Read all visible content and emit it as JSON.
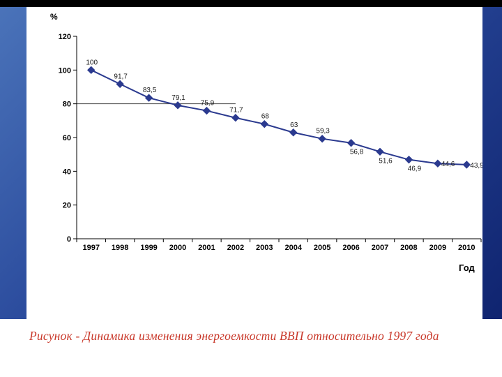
{
  "chart_data": {
    "type": "line",
    "title": "",
    "ylabel": "%",
    "xlabel": "Год",
    "categories": [
      "1997",
      "1998",
      "1999",
      "2000",
      "2001",
      "2002",
      "2003",
      "2004",
      "2005",
      "2006",
      "2007",
      "2008",
      "2009",
      "2010"
    ],
    "values": [
      100,
      91.7,
      83.5,
      79.1,
      75.9,
      71.7,
      68,
      63,
      59.3,
      56.8,
      51.6,
      46.9,
      44.6,
      43.9
    ],
    "point_labels": [
      "100",
      "91,7",
      "83,5",
      "79,1",
      "75,9",
      "71,7",
      "68",
      "63",
      "59,3",
      "56,8",
      "51,6",
      "46,9",
      "44,6",
      "43,9"
    ],
    "label_sides": [
      "above",
      "above",
      "above",
      "above",
      "above",
      "above",
      "above",
      "above",
      "above",
      "below",
      "below",
      "below",
      "right",
      "right"
    ],
    "ylim": [
      0,
      120
    ],
    "yticks": [
      "0",
      "20",
      "40",
      "60",
      "80",
      "100",
      "120"
    ],
    "grid": false,
    "legend": "none",
    "marker": "diamond",
    "series_color": "#2b3a8f",
    "axis_color": "#000000",
    "partial_gridline": {
      "value": 80,
      "span_categories": 5.5
    }
  },
  "caption": {
    "text": "Рисунок - Динамика изменения энергоемкости ВВП относительно 1997 года",
    "color": "#c9392b"
  }
}
